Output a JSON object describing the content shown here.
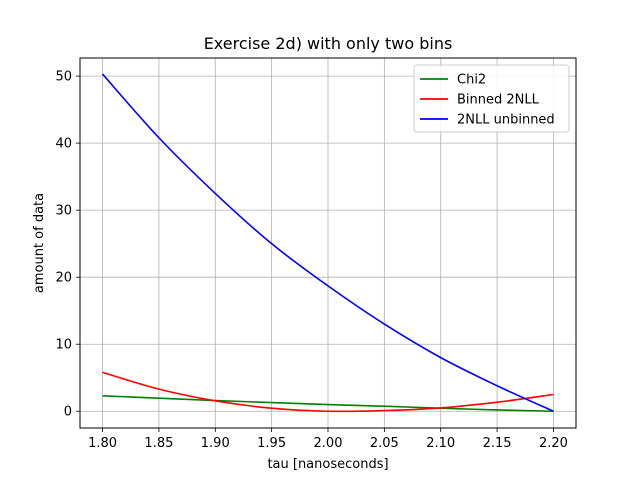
{
  "chart_data": {
    "type": "line",
    "title": "Exercise 2d) with only two bins",
    "xlabel": "tau [nanoseconds]",
    "ylabel": "amount of data",
    "xlim": [
      1.78,
      2.22
    ],
    "ylim": [
      -2.5,
      52.7
    ],
    "xticks": [
      1.8,
      1.85,
      1.9,
      1.95,
      2.0,
      2.05,
      2.1,
      2.15,
      2.2
    ],
    "xtick_labels": [
      "1.80",
      "1.85",
      "1.90",
      "1.95",
      "2.00",
      "2.05",
      "2.10",
      "2.15",
      "2.20"
    ],
    "yticks": [
      0,
      10,
      20,
      30,
      40,
      50
    ],
    "ytick_labels": [
      "0",
      "10",
      "20",
      "30",
      "40",
      "50"
    ],
    "grid": true,
    "legend_position": "top-right",
    "x": [
      1.8,
      1.85,
      1.9,
      1.95,
      2.0,
      2.05,
      2.1,
      2.15,
      2.2
    ],
    "series": [
      {
        "name": "Chi2",
        "color": "#008000",
        "values": [
          2.3,
          1.95,
          1.6,
          1.3,
          1.0,
          0.75,
          0.45,
          0.2,
          0.0
        ]
      },
      {
        "name": "Binned 2NLL",
        "color": "#ff0000",
        "values": [
          5.8,
          3.3,
          1.55,
          0.45,
          0.0,
          0.1,
          0.5,
          1.35,
          2.5
        ]
      },
      {
        "name": "2NLL unbinned",
        "color": "#0000ff",
        "values": [
          50.3,
          40.8,
          32.5,
          25.0,
          18.7,
          13.0,
          8.0,
          3.8,
          0.0
        ]
      }
    ]
  }
}
